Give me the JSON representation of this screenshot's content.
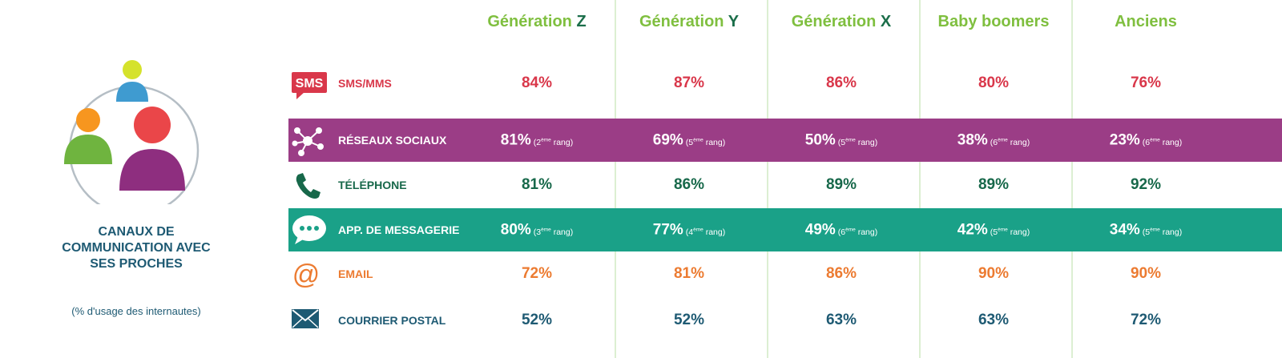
{
  "title": "CANAUX DE COMMUNICATION AVEC SES PROCHES",
  "subtitle": "(% d'usage des internautes)",
  "colors": {
    "header": "#7fbf3f",
    "header_letter": "#1b6e4a",
    "sms": "#d9374a",
    "reseaux_band": "#9b3d86",
    "telephone": "#17684a",
    "messagerie_band": "#1aa188",
    "email": "#ec7b31",
    "courrier": "#1e5a73"
  },
  "chart_data": {
    "type": "table",
    "title": "CANAUX DE COMMUNICATION AVEC SES PROCHES",
    "subtitle": "(% d'usage des internautes)",
    "columns": [
      {
        "prefix": "Génération ",
        "letter": "Z"
      },
      {
        "prefix": "Génération ",
        "letter": "Y"
      },
      {
        "prefix": "Génération ",
        "letter": "X"
      },
      {
        "prefix": "Baby boomers",
        "letter": ""
      },
      {
        "prefix": "Anciens",
        "letter": ""
      }
    ],
    "rows": [
      {
        "label": "SMS/MMS",
        "icon": "sms-icon",
        "values": [
          "84%",
          "87%",
          "86%",
          "80%",
          "76%"
        ],
        "ranks": []
      },
      {
        "label": "RÉSEAUX SOCIAUX",
        "icon": "network-icon",
        "values": [
          "81%",
          "69%",
          "50%",
          "38%",
          "23%"
        ],
        "ranks": [
          {
            "num": "(2",
            "sup": "ème",
            "word": " rang)"
          },
          {
            "num": "(5",
            "sup": "ème",
            "word": " rang)"
          },
          {
            "num": "(5",
            "sup": "ème",
            "word": " rang)"
          },
          {
            "num": "(6",
            "sup": "ème",
            "word": " rang)"
          },
          {
            "num": "(6",
            "sup": "ème",
            "word": " rang)"
          }
        ]
      },
      {
        "label": "TÉLÉPHONE",
        "icon": "phone-icon",
        "values": [
          "81%",
          "86%",
          "89%",
          "89%",
          "92%"
        ],
        "ranks": []
      },
      {
        "label": "APP. DE MESSAGERIE",
        "icon": "chat-bubble-icon",
        "values": [
          "80%",
          "77%",
          "49%",
          "42%",
          "34%"
        ],
        "ranks": [
          {
            "num": "(3",
            "sup": "ème",
            "word": " rang)"
          },
          {
            "num": "(4",
            "sup": "ème",
            "word": " rang)"
          },
          {
            "num": "(6",
            "sup": "ème",
            "word": " rang)"
          },
          {
            "num": "(5",
            "sup": "ème",
            "word": " rang)"
          },
          {
            "num": "(5",
            "sup": "ème",
            "word": " rang)"
          }
        ]
      },
      {
        "label": "EMAIL",
        "icon": "at-sign-icon",
        "values": [
          "72%",
          "81%",
          "86%",
          "90%",
          "90%"
        ],
        "ranks": []
      },
      {
        "label": "COURRIER POSTAL",
        "icon": "envelope-icon",
        "values": [
          "52%",
          "52%",
          "63%",
          "63%",
          "72%"
        ],
        "ranks": []
      }
    ]
  }
}
